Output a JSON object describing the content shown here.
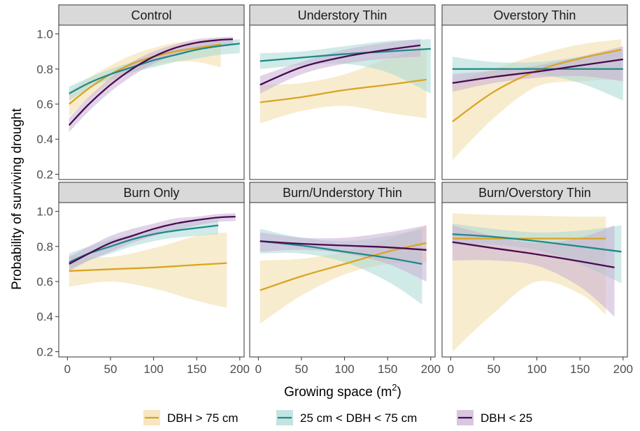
{
  "chart_data": {
    "type": "line",
    "facet_layout": "2 rows x 3 columns",
    "xlabel": "Growing space (m²)",
    "xlabel_base": "Growing space (",
    "xlabel_unit": "m",
    "xlabel_sup": "2",
    "xlabel_close": ")",
    "ylabel": "Probability of surviving drought",
    "xlim": [
      -10,
      205
    ],
    "ylim": [
      0.17,
      1.05
    ],
    "x_ticks": [
      0,
      50,
      100,
      150,
      200
    ],
    "x_tick_labels": [
      "0",
      "50",
      "100",
      "150",
      "200"
    ],
    "y_ticks": [
      0.2,
      0.4,
      0.6,
      0.8,
      1.0
    ],
    "y_tick_labels": [
      "0.2",
      "0.4",
      "0.6",
      "0.8",
      "1.0"
    ],
    "grid": false,
    "legend_position": "bottom",
    "legend": [
      {
        "label": "DBH > 75 cm",
        "color": "#D9A520"
      },
      {
        "label": "25 cm < DBH < 75 cm",
        "color": "#1F8A87"
      },
      {
        "label": "DBH < 25",
        "color": "#4A0A52"
      }
    ],
    "series_colors": [
      "#D9A520",
      "#1F8A87",
      "#4A0A52"
    ],
    "band_colors": [
      "#F2DDA8",
      "#A9D9D6",
      "#C9AED3"
    ],
    "panels": [
      {
        "title": "Control",
        "series": [
          {
            "x": [
              2,
              25,
              50,
              75,
              100,
              125,
              150,
              178
            ],
            "y": [
              0.6,
              0.69,
              0.77,
              0.83,
              0.87,
              0.9,
              0.92,
              0.94
            ],
            "lower": [
              0.53,
              0.63,
              0.72,
              0.78,
              0.82,
              0.84,
              0.84,
              0.81
            ],
            "upper": [
              0.67,
              0.75,
              0.82,
              0.88,
              0.92,
              0.95,
              0.96,
              0.98
            ]
          },
          {
            "x": [
              2,
              25,
              50,
              75,
              100,
              125,
              150,
              175,
              200
            ],
            "y": [
              0.66,
              0.72,
              0.77,
              0.81,
              0.85,
              0.88,
              0.91,
              0.93,
              0.945
            ],
            "lower": [
              0.62,
              0.69,
              0.74,
              0.78,
              0.81,
              0.84,
              0.86,
              0.88,
              0.89
            ],
            "upper": [
              0.7,
              0.75,
              0.8,
              0.84,
              0.88,
              0.91,
              0.94,
              0.96,
              0.97
            ]
          },
          {
            "x": [
              2,
              25,
              50,
              75,
              100,
              125,
              150,
              175,
              192
            ],
            "y": [
              0.48,
              0.6,
              0.71,
              0.8,
              0.87,
              0.92,
              0.95,
              0.965,
              0.97
            ],
            "lower": [
              0.44,
              0.56,
              0.67,
              0.76,
              0.83,
              0.88,
              0.91,
              0.93,
              0.94
            ],
            "upper": [
              0.52,
              0.64,
              0.75,
              0.84,
              0.9,
              0.94,
              0.97,
              0.98,
              0.985
            ]
          }
        ]
      },
      {
        "title": "Understory Thin",
        "series": [
          {
            "x": [
              2,
              50,
              100,
              150,
              195
            ],
            "y": [
              0.61,
              0.64,
              0.68,
              0.71,
              0.74
            ],
            "lower": [
              0.49,
              0.56,
              0.59,
              0.55,
              0.52
            ],
            "upper": [
              0.71,
              0.72,
              0.77,
              0.86,
              0.92
            ]
          },
          {
            "x": [
              2,
              50,
              100,
              150,
              200
            ],
            "y": [
              0.845,
              0.865,
              0.885,
              0.9,
              0.915
            ],
            "lower": [
              0.8,
              0.82,
              0.83,
              0.78,
              0.66
            ],
            "upper": [
              0.89,
              0.9,
              0.93,
              0.96,
              0.97
            ]
          },
          {
            "x": [
              2,
              50,
              100,
              150,
              188
            ],
            "y": [
              0.71,
              0.81,
              0.87,
              0.91,
              0.935
            ],
            "lower": [
              0.66,
              0.77,
              0.83,
              0.86,
              0.87
            ],
            "upper": [
              0.76,
              0.84,
              0.91,
              0.95,
              0.97
            ]
          }
        ]
      },
      {
        "title": "Overstory Thin",
        "series": [
          {
            "x": [
              2,
              50,
              100,
              150,
              198
            ],
            "y": [
              0.5,
              0.67,
              0.79,
              0.86,
              0.91
            ],
            "lower": [
              0.28,
              0.52,
              0.7,
              0.73,
              0.74
            ],
            "upper": [
              0.72,
              0.8,
              0.88,
              0.94,
              0.97
            ]
          },
          {
            "x": [
              2,
              50,
              100,
              150,
              200
            ],
            "y": [
              0.8,
              0.8,
              0.8,
              0.8,
              0.8
            ],
            "lower": [
              0.72,
              0.76,
              0.77,
              0.72,
              0.62
            ],
            "upper": [
              0.87,
              0.84,
              0.84,
              0.87,
              0.91
            ]
          },
          {
            "x": [
              2,
              50,
              100,
              150,
              200
            ],
            "y": [
              0.72,
              0.755,
              0.785,
              0.82,
              0.855
            ],
            "lower": [
              0.67,
              0.72,
              0.75,
              0.76,
              0.73
            ],
            "upper": [
              0.77,
              0.79,
              0.82,
              0.87,
              0.93
            ]
          }
        ]
      },
      {
        "title": "Burn Only",
        "series": [
          {
            "x": [
              2,
              50,
              100,
              150,
              185
            ],
            "y": [
              0.66,
              0.67,
              0.68,
              0.695,
              0.705
            ],
            "lower": [
              0.57,
              0.6,
              0.56,
              0.49,
              0.45
            ],
            "upper": [
              0.75,
              0.74,
              0.79,
              0.86,
              0.88
            ]
          },
          {
            "x": [
              2,
              25,
              50,
              75,
              100,
              125,
              150,
              175
            ],
            "y": [
              0.71,
              0.76,
              0.8,
              0.84,
              0.87,
              0.89,
              0.905,
              0.92
            ],
            "lower": [
              0.67,
              0.72,
              0.76,
              0.8,
              0.83,
              0.85,
              0.86,
              0.87
            ],
            "upper": [
              0.76,
              0.8,
              0.84,
              0.87,
              0.9,
              0.925,
              0.94,
              0.955
            ]
          },
          {
            "x": [
              2,
              25,
              50,
              75,
              100,
              125,
              150,
              175,
              195
            ],
            "y": [
              0.7,
              0.76,
              0.82,
              0.86,
              0.9,
              0.93,
              0.95,
              0.965,
              0.97
            ],
            "lower": [
              0.66,
              0.72,
              0.77,
              0.82,
              0.86,
              0.89,
              0.92,
              0.94,
              0.945
            ],
            "upper": [
              0.74,
              0.8,
              0.86,
              0.9,
              0.93,
              0.96,
              0.97,
              0.985,
              0.99
            ]
          }
        ]
      },
      {
        "title": "Burn/Understory Thin",
        "series": [
          {
            "x": [
              2,
              50,
              100,
              150,
              195
            ],
            "y": [
              0.55,
              0.63,
              0.7,
              0.77,
              0.82
            ],
            "lower": [
              0.36,
              0.52,
              0.64,
              0.7,
              0.71
            ],
            "upper": [
              0.72,
              0.73,
              0.77,
              0.84,
              0.92
            ]
          },
          {
            "x": [
              2,
              50,
              100,
              150,
              190
            ],
            "y": [
              0.83,
              0.805,
              0.77,
              0.735,
              0.7
            ],
            "lower": [
              0.76,
              0.76,
              0.71,
              0.6,
              0.47
            ],
            "upper": [
              0.9,
              0.85,
              0.83,
              0.86,
              0.9
            ]
          },
          {
            "x": [
              2,
              50,
              100,
              150,
              195
            ],
            "y": [
              0.83,
              0.815,
              0.805,
              0.795,
              0.78
            ],
            "lower": [
              0.77,
              0.78,
              0.76,
              0.7,
              0.6
            ],
            "upper": [
              0.88,
              0.85,
              0.85,
              0.88,
              0.92
            ]
          }
        ]
      },
      {
        "title": "Burn/Overstory Thin",
        "series": [
          {
            "x": [
              2,
              50,
              100,
              150,
              180
            ],
            "y": [
              0.845,
              0.845,
              0.845,
              0.845,
              0.845
            ],
            "lower": [
              0.2,
              0.42,
              0.6,
              0.53,
              0.41
            ],
            "upper": [
              0.99,
              0.98,
              0.975,
              0.97,
              0.97
            ]
          },
          {
            "x": [
              2,
              50,
              100,
              150,
              198
            ],
            "y": [
              0.87,
              0.855,
              0.83,
              0.8,
              0.77
            ],
            "lower": [
              0.81,
              0.81,
              0.78,
              0.7,
              0.59
            ],
            "upper": [
              0.93,
              0.9,
              0.88,
              0.89,
              0.92
            ]
          },
          {
            "x": [
              2,
              50,
              100,
              150,
              190
            ],
            "y": [
              0.825,
              0.79,
              0.755,
              0.715,
              0.68
            ],
            "lower": [
              0.72,
              0.72,
              0.69,
              0.57,
              0.4
            ],
            "upper": [
              0.92,
              0.86,
              0.82,
              0.85,
              0.92
            ]
          }
        ]
      }
    ]
  }
}
